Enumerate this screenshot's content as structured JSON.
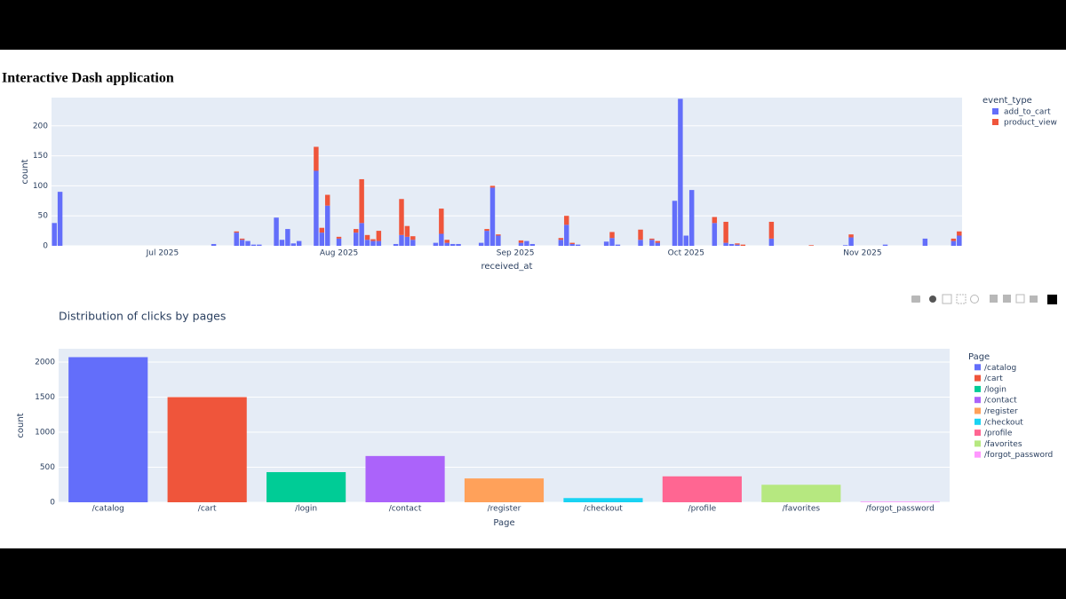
{
  "title": "Interactive Dash application",
  "chart_data": [
    {
      "type": "stacked_bar",
      "x": [
        "2025-06-12",
        "2025-06-13",
        "2025-07-10",
        "2025-07-14",
        "2025-07-15",
        "2025-07-16",
        "2025-07-17",
        "2025-07-18",
        "2025-07-21",
        "2025-07-22",
        "2025-07-23",
        "2025-07-24",
        "2025-07-25",
        "2025-07-28",
        "2025-07-29",
        "2025-07-30",
        "2025-08-01",
        "2025-08-04",
        "2025-08-05",
        "2025-08-06",
        "2025-08-07",
        "2025-08-08",
        "2025-08-11",
        "2025-08-12",
        "2025-08-13",
        "2025-08-14",
        "2025-08-18",
        "2025-08-19",
        "2025-08-20",
        "2025-08-21",
        "2025-08-22",
        "2025-08-26",
        "2025-08-27",
        "2025-08-28",
        "2025-08-29",
        "2025-09-02",
        "2025-09-03",
        "2025-09-04",
        "2025-09-09",
        "2025-09-10",
        "2025-09-11",
        "2025-09-12",
        "2025-09-17",
        "2025-09-18",
        "2025-09-19",
        "2025-09-23",
        "2025-09-25",
        "2025-09-26",
        "2025-09-29",
        "2025-09-30",
        "2025-10-01",
        "2025-10-02",
        "2025-10-06",
        "2025-10-08",
        "2025-10-09",
        "2025-10-10",
        "2025-10-11",
        "2025-10-16",
        "2025-10-23",
        "2025-10-29",
        "2025-10-30",
        "2025-11-05",
        "2025-11-12",
        "2025-11-17",
        "2025-11-18"
      ],
      "series": [
        {
          "name": "add_to_cart",
          "color": "#636efa",
          "values": [
            38,
            90,
            3,
            22,
            10,
            8,
            2,
            2,
            47,
            10,
            28,
            4,
            8,
            125,
            22,
            67,
            12,
            22,
            38,
            10,
            8,
            8,
            3,
            18,
            15,
            10,
            5,
            20,
            5,
            3,
            3,
            5,
            25,
            97,
            17,
            5,
            8,
            3,
            10,
            35,
            3,
            2,
            7,
            13,
            2,
            10,
            10,
            5,
            75,
            245,
            17,
            93,
            38,
            5,
            3,
            2,
            0,
            12,
            0,
            1,
            14,
            2,
            12,
            8,
            17
          ]
        },
        {
          "name": "product_view",
          "color": "#EF553B",
          "values": [
            0,
            0,
            0,
            2,
            2,
            0,
            0,
            0,
            0,
            0,
            0,
            0,
            0,
            40,
            8,
            18,
            3,
            6,
            73,
            8,
            3,
            17,
            0,
            60,
            18,
            6,
            0,
            42,
            5,
            0,
            0,
            0,
            3,
            3,
            2,
            4,
            0,
            0,
            3,
            15,
            2,
            0,
            0,
            10,
            0,
            17,
            2,
            3,
            0,
            0,
            0,
            0,
            10,
            35,
            0,
            2,
            2,
            28,
            1,
            0,
            5,
            0,
            0,
            4,
            7
          ]
        }
      ],
      "xlim": [
        "2025-06-11T12:00:00",
        "2025-11-18T12:00:00"
      ],
      "xticks": [
        {
          "value": "2025-07-01",
          "label": "Jul 2025"
        },
        {
          "value": "2025-08-01",
          "label": "Aug 2025"
        },
        {
          "value": "2025-09-01",
          "label": "Sep 2025"
        },
        {
          "value": "2025-10-01",
          "label": "Oct 2025"
        },
        {
          "value": "2025-11-01",
          "label": "Nov 2025"
        }
      ],
      "ylim": [
        0,
        247
      ],
      "yticks": [
        0,
        50,
        100,
        150,
        200
      ],
      "xlabel": "received_at",
      "ylabel": "count",
      "legend_title": "event_type",
      "grid": true
    },
    {
      "type": "bar",
      "title": "Distribution of clicks by pages",
      "categories": [
        "/catalog",
        "/cart",
        "/login",
        "/contact",
        "/register",
        "/checkout",
        "/profile",
        "/favorites",
        "/forgot_password"
      ],
      "values": [
        2070,
        1500,
        430,
        660,
        340,
        60,
        370,
        250,
        10
      ],
      "colors": [
        "#636efa",
        "#EF553B",
        "#00cc96",
        "#ab63fa",
        "#FFA15A",
        "#19d3f3",
        "#FF6692",
        "#B6E880",
        "#FF97FF"
      ],
      "ylim": [
        0,
        2190
      ],
      "yticks": [
        0,
        500,
        1000,
        1500,
        2000
      ],
      "xlabel": "Page",
      "ylabel": "count",
      "legend_title": "Page",
      "grid": true
    }
  ]
}
